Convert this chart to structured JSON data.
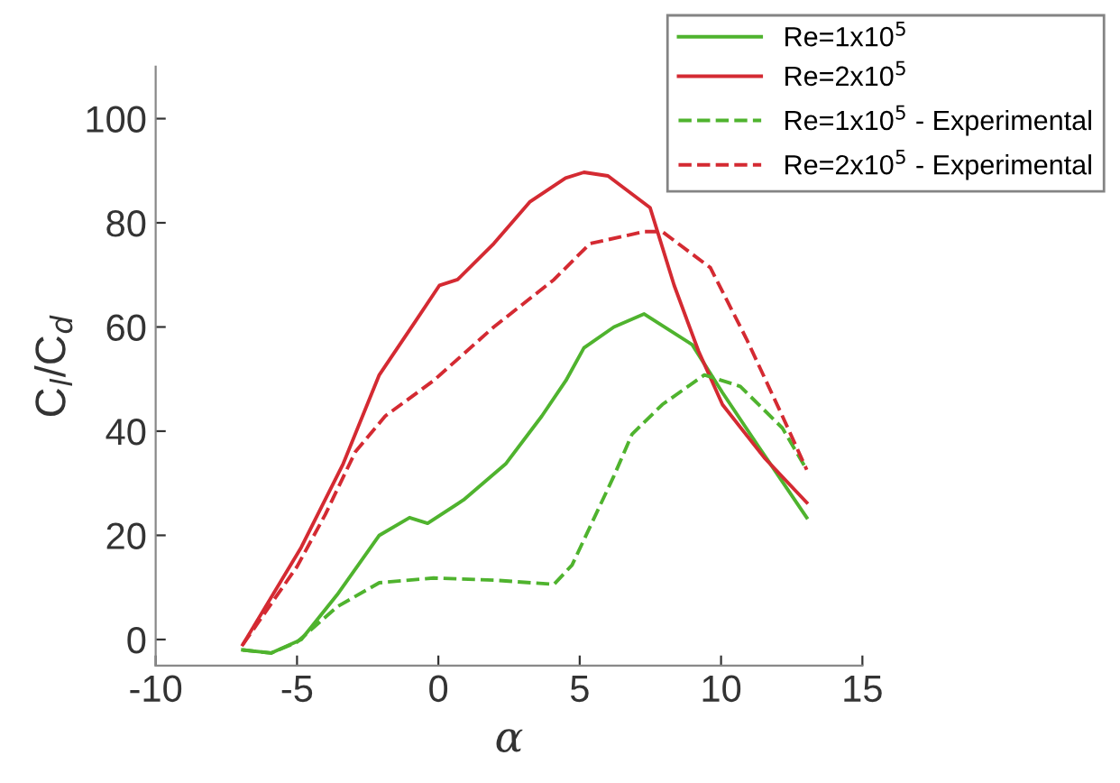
{
  "chart_data": {
    "type": "line",
    "xlabel": "α",
    "ylabel": "C$_{l}$/C$_{d}$",
    "xlim": [
      -10,
      15
    ],
    "ylim": [
      -5,
      110
    ],
    "xticks": [
      -10,
      -5,
      0,
      5,
      10,
      15
    ],
    "yticks": [
      0,
      20,
      40,
      60,
      80,
      100
    ],
    "grid": false,
    "legend": "top right",
    "series": [
      {
        "name": "Re=1x10$^{5}$",
        "color": "#4fb32e",
        "line_style": "solid",
        "x": [
          -6.92,
          -5.92,
          -4.85,
          -3.58,
          -2.09,
          -1.02,
          -0.38,
          0.89,
          2.38,
          3.66,
          4.51,
          5.15,
          6.21,
          7.28,
          8.98,
          10.05,
          11.32,
          13.03
        ],
        "values": [
          -2,
          -2.6,
          0,
          8.6,
          20,
          23.4,
          22.3,
          26.8,
          33.7,
          42.9,
          49.7,
          56,
          60,
          62.5,
          56.6,
          47.4,
          37.1,
          23.4
        ]
      },
      {
        "name": "Re=2x10$^{5}$",
        "color": "#d42a32",
        "line_style": "solid",
        "x": [
          -6.92,
          -4.85,
          -3.37,
          -2.09,
          -0.81,
          0.04,
          0.68,
          1.96,
          3.23,
          4.5,
          5.15,
          6.0,
          7.49,
          8.34,
          9.2,
          10.05,
          11.53,
          13.03
        ],
        "values": [
          -1,
          17.7,
          33.7,
          50.8,
          61.1,
          68,
          69.1,
          76,
          84,
          88.6,
          89.7,
          89,
          82.9,
          68,
          55.4,
          45.1,
          34.9,
          26.3
        ]
      },
      {
        "name": "Re=1x10$^{5}$ - Experimental",
        "color": "#4fb32e",
        "line_style": "dashed",
        "x": [
          -6.92,
          -5.92,
          -5,
          -3.58,
          -2.09,
          -0.17,
          1.96,
          4.09,
          4.73,
          6.21,
          6.85,
          7.92,
          9.41,
          10.68,
          12.17,
          13.03
        ],
        "values": [
          -2,
          -2.6,
          -0.5,
          6.3,
          10.9,
          11.8,
          11.4,
          10.6,
          14.3,
          31.4,
          39.4,
          45.1,
          50.8,
          48.6,
          40.6,
          32.6
        ]
      },
      {
        "name": "Re=2x10$^{5}$ - Experimental",
        "color": "#d42a32",
        "line_style": "dashed",
        "x": [
          -6.92,
          -5,
          -4,
          -2.94,
          -1.88,
          -0.17,
          1.96,
          4.09,
          5.36,
          7.28,
          7.92,
          9.62,
          10.9,
          12.17,
          13.03
        ],
        "values": [
          -1,
          14,
          24,
          36,
          42.9,
          49.7,
          60,
          69.1,
          76,
          78.3,
          78.3,
          71.4,
          57.7,
          42.9,
          32.6
        ]
      }
    ]
  }
}
